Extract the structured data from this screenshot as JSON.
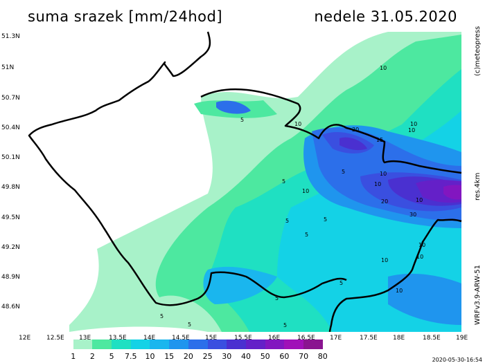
{
  "header": {
    "title": "suma srazek [mm/24hod]",
    "date": "nedele 31.05.2020"
  },
  "side_labels": {
    "copyright": "(c)meteopress",
    "resolution": "res.4km",
    "model": "WRFv3.9-ARW-51"
  },
  "lat_ticks": [
    "51.3N",
    "51N",
    "50.7N",
    "50.4N",
    "50.1N",
    "49.8N",
    "49.5N",
    "49.2N",
    "48.9N",
    "48.6N"
  ],
  "lon_ticks": [
    "12E",
    "12.5E",
    "13E",
    "13.5E",
    "14E",
    "14.5E",
    "15E",
    "15.5E",
    "16E",
    "16.5E",
    "17E",
    "17.5E",
    "18E",
    "18.5E",
    "19E"
  ],
  "legend": {
    "labels": [
      "1",
      "2",
      "5",
      "7.5",
      "10",
      "15",
      "20",
      "25",
      "30",
      "40",
      "50",
      "60",
      "70",
      "80"
    ],
    "colors": [
      "#ffffff",
      "#a8f2c9",
      "#4de8a0",
      "#1fe0c2",
      "#14d2e6",
      "#1ab6ee",
      "#1f95ee",
      "#2c6fea",
      "#3a4fe0",
      "#4a30d0",
      "#6420c8",
      "#8216c0",
      "#a010b8",
      "#8a1490"
    ]
  },
  "contour_labels": [
    "10",
    "5",
    "10",
    "10",
    "20",
    "15",
    "10",
    "10",
    "5",
    "5",
    "10",
    "10",
    "20",
    "5",
    "10",
    "30",
    "5",
    "5",
    "10",
    "10",
    "5",
    "10",
    "5",
    "5",
    "10",
    "5",
    "5"
  ],
  "timestamp": "2020-05-30-16:54"
}
